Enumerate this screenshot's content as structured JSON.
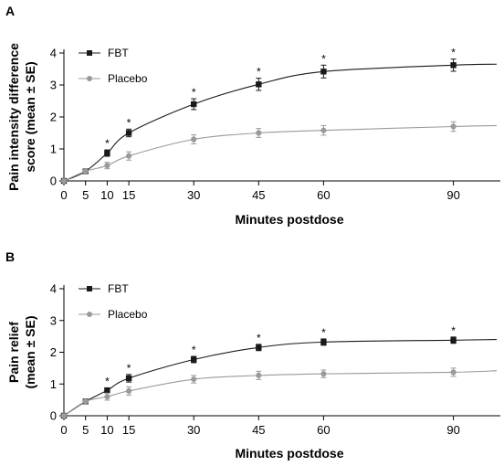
{
  "colors": {
    "fbt": "#1a1a1a",
    "placebo": "#9a9a9a"
  },
  "chart_data": [
    {
      "type": "line",
      "panel": "A",
      "xlabel": "Minutes postdose",
      "ylabel": [
        "Pain intensity difference",
        "score (mean ± SE)"
      ],
      "xticks": [
        0,
        5,
        10,
        15,
        30,
        45,
        60,
        90
      ],
      "yticks": [
        0,
        1,
        2,
        3,
        4
      ],
      "xlim": [
        0,
        100
      ],
      "ylim": [
        0,
        4
      ],
      "legend_position": "top-left",
      "series": [
        {
          "name": "FBT",
          "color": "#1a1a1a",
          "marker": "square",
          "x": [
            0,
            5,
            10,
            15,
            30,
            45,
            60,
            90
          ],
          "y": [
            0,
            0.3,
            0.87,
            1.5,
            2.4,
            3.02,
            3.42,
            3.62
          ],
          "se": [
            0,
            0.08,
            0.1,
            0.12,
            0.17,
            0.19,
            0.2,
            0.19
          ],
          "curve_end": 3.65
        },
        {
          "name": "Placebo",
          "color": "#9a9a9a",
          "marker": "circle",
          "x": [
            0,
            5,
            10,
            15,
            30,
            45,
            60,
            90
          ],
          "y": [
            0,
            0.3,
            0.48,
            0.78,
            1.3,
            1.5,
            1.58,
            1.7
          ],
          "se": [
            0,
            0.08,
            0.1,
            0.13,
            0.14,
            0.14,
            0.15,
            0.15
          ],
          "curve_end": 1.73
        }
      ],
      "significance_markers": {
        "symbol": "*",
        "x": [
          10,
          15,
          30,
          45,
          60,
          90
        ]
      }
    },
    {
      "type": "line",
      "panel": "B",
      "xlabel": "Minutes postdose",
      "ylabel": [
        "Pain relief",
        "(mean ± SE)"
      ],
      "xticks": [
        0,
        5,
        10,
        15,
        30,
        45,
        60,
        90
      ],
      "yticks": [
        0,
        1,
        2,
        3,
        4
      ],
      "xlim": [
        0,
        100
      ],
      "ylim": [
        0,
        4
      ],
      "legend_position": "top-left",
      "series": [
        {
          "name": "FBT",
          "color": "#1a1a1a",
          "marker": "square",
          "x": [
            0,
            5,
            10,
            15,
            30,
            45,
            60,
            90
          ],
          "y": [
            0,
            0.45,
            0.8,
            1.18,
            1.77,
            2.15,
            2.32,
            2.38
          ],
          "se": [
            0,
            0.05,
            0.08,
            0.12,
            0.1,
            0.1,
            0.1,
            0.1
          ],
          "curve_end": 2.4
        },
        {
          "name": "Placebo",
          "color": "#9a9a9a",
          "marker": "circle",
          "x": [
            0,
            5,
            10,
            15,
            30,
            45,
            60,
            90
          ],
          "y": [
            0,
            0.45,
            0.6,
            0.78,
            1.15,
            1.27,
            1.32,
            1.37
          ],
          "se": [
            0,
            0.05,
            0.11,
            0.13,
            0.12,
            0.13,
            0.12,
            0.13
          ],
          "curve_end": 1.42
        }
      ],
      "significance_markers": {
        "symbol": "*",
        "x": [
          10,
          15,
          30,
          45,
          60,
          90
        ]
      }
    }
  ]
}
